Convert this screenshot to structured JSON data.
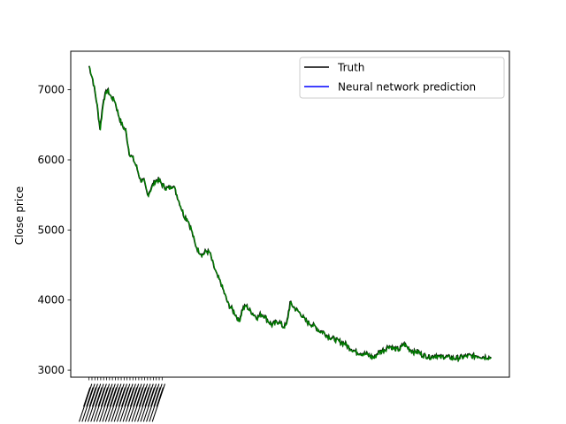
{
  "chart_data": {
    "type": "line",
    "title": "",
    "xlabel": "",
    "ylabel": "Close price",
    "ylim": [
      2900,
      7550
    ],
    "xlim": [
      -25,
      575
    ],
    "yticks": [
      3000,
      4000,
      5000,
      6000,
      7000
    ],
    "x_tick_count": 26,
    "x_tick_range": [
      0,
      100
    ],
    "legend_position": "upper right",
    "grid": false,
    "colors": {
      "truth": "#000000",
      "prediction": "#0000ff",
      "overlay": "#008000"
    },
    "series": [
      {
        "name": "Truth",
        "x": [
          0,
          5,
          10,
          15,
          20,
          25,
          30,
          35,
          40,
          45,
          50,
          55,
          60,
          65,
          70,
          75,
          80,
          85,
          90,
          95,
          100,
          105,
          110,
          115,
          120,
          125,
          130,
          135,
          140,
          145,
          150,
          155,
          160,
          165,
          170,
          175,
          180,
          185,
          190,
          195,
          200,
          205,
          210,
          215,
          220,
          225,
          230,
          235,
          240,
          245,
          250,
          255,
          260,
          265,
          270,
          275,
          280,
          285,
          290,
          295,
          300,
          305,
          310,
          315,
          320,
          325,
          330,
          335,
          340,
          345,
          350,
          355,
          360,
          365,
          370,
          375,
          380,
          385,
          390,
          395,
          400,
          405,
          410,
          415,
          420,
          425,
          430,
          435,
          440,
          445,
          450,
          455,
          460,
          465,
          470,
          475,
          480,
          485,
          490,
          495,
          500,
          505,
          510,
          515,
          520,
          525,
          530,
          535,
          540,
          545,
          550
        ],
        "values": [
          7340,
          7150,
          6850,
          6450,
          6880,
          7000,
          6900,
          6850,
          6650,
          6500,
          6420,
          6100,
          6020,
          5900,
          5720,
          5700,
          5500,
          5600,
          5700,
          5720,
          5650,
          5600,
          5600,
          5650,
          5500,
          5350,
          5200,
          5150,
          5000,
          4800,
          4700,
          4650,
          4700,
          4680,
          4500,
          4350,
          4250,
          4100,
          3950,
          3880,
          3800,
          3700,
          3880,
          3920,
          3850,
          3800,
          3750,
          3800,
          3780,
          3700,
          3650,
          3680,
          3700,
          3620,
          3650,
          3960,
          3900,
          3850,
          3800,
          3720,
          3680,
          3650,
          3620,
          3560,
          3550,
          3500,
          3470,
          3450,
          3420,
          3400,
          3380,
          3330,
          3300,
          3260,
          3250,
          3240,
          3230,
          3200,
          3180,
          3250,
          3280,
          3300,
          3350,
          3320,
          3300,
          3300,
          3380,
          3330,
          3290,
          3260,
          3270,
          3220,
          3210,
          3190,
          3200,
          3220,
          3180,
          3200,
          3190,
          3180,
          3170,
          3180,
          3190,
          3200,
          3210,
          3200,
          3210,
          3200,
          3190,
          3190,
          3180
        ]
      },
      {
        "name": "Neural network prediction"
      }
    ]
  }
}
